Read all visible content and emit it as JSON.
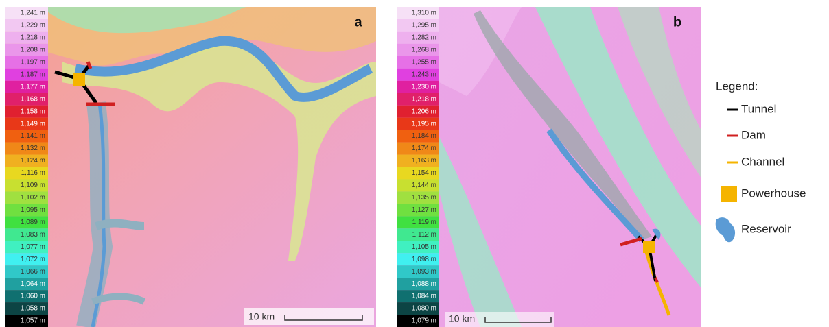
{
  "panels": [
    {
      "label": "a",
      "scale_bar": "10 km",
      "scale": [
        "1,241 m",
        "1,229 m",
        "1,218 m",
        "1,208 m",
        "1,197 m",
        "1,187 m",
        "1,177 m",
        "1,168 m",
        "1,158 m",
        "1,149 m",
        "1,141 m",
        "1,132 m",
        "1,124 m",
        "1,116 m",
        "1,109 m",
        "1,102 m",
        "1,095 m",
        "1,089 m",
        "1,083 m",
        "1,077 m",
        "1,072 m",
        "1,066 m",
        "1,064 m",
        "1,060 m",
        "1,058 m",
        "1,057 m"
      ]
    },
    {
      "label": "b",
      "scale_bar": "10 km",
      "scale": [
        "1,310 m",
        "1,295 m",
        "1,282 m",
        "1,268 m",
        "1,255 m",
        "1,243 m",
        "1,230 m",
        "1,218 m",
        "1,206 m",
        "1,195 m",
        "1,184 m",
        "1,174 m",
        "1,163 m",
        "1,154 m",
        "1,144 m",
        "1,135 m",
        "1,127 m",
        "1,119 m",
        "1,112 m",
        "1,105 m",
        "1,098 m",
        "1,093 m",
        "1,088 m",
        "1,084 m",
        "1,080 m",
        "1,079 m"
      ]
    }
  ],
  "legend": {
    "title": "Legend:",
    "items": [
      "Tunnel",
      "Dam",
      "Channel",
      "Powerhouse",
      "Reservoir"
    ]
  }
}
